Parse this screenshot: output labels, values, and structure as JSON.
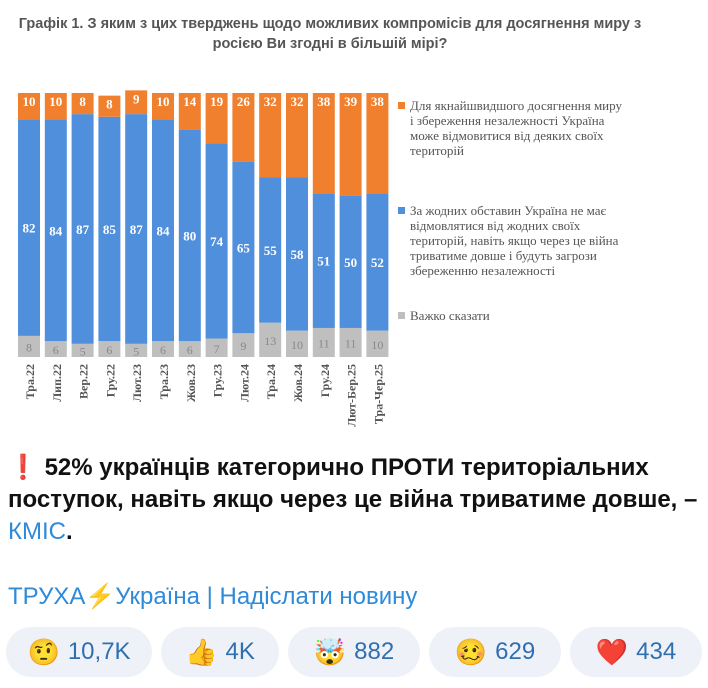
{
  "chart_data": {
    "type": "bar",
    "stacked": true,
    "title": "Графік 1. З яким з цих тверджень щодо можливих компромісів для досягнення миру з росією Ви згодні в більшій мірі?",
    "categories": [
      "Тра.22",
      "Лип.22",
      "Вер.22",
      "Гру.22",
      "Лют.23",
      "Тра.23",
      "Жов.23",
      "Гру.23",
      "Лют.24",
      "Тра.24",
      "Жов.24",
      "Гру.24",
      "Лют-Бер.25",
      "Тра-Чер.25"
    ],
    "series": [
      {
        "name": "Важко сказати",
        "color": "#bfbfbf",
        "values": [
          8,
          6,
          5,
          6,
          5,
          6,
          6,
          7,
          9,
          13,
          10,
          11,
          11,
          10
        ]
      },
      {
        "name": "За жодних обставин Україна не має відмовлятися від жодних своїх територій, навіть якщо через це війна триватиме довше і будуть загрози збереженню незалежності",
        "color": "#4f8fdc",
        "values": [
          82,
          84,
          87,
          85,
          87,
          84,
          80,
          74,
          65,
          55,
          58,
          51,
          50,
          52
        ]
      },
      {
        "name": "Для якнайшвидшого досягнення миру і збереження незалежності Україна може відмовитися від деяких своїх територій",
        "color": "#f07f2e",
        "values": [
          10,
          10,
          8,
          8,
          9,
          10,
          14,
          19,
          26,
          32,
          32,
          38,
          39,
          38
        ]
      }
    ],
    "ylim": [
      0,
      100
    ],
    "legend": "right"
  },
  "message": {
    "icon": "❗",
    "text": "52% українців категорично ПРОТИ територіальних поступок, навіть якщо через це війна триватиме довше, – ",
    "link": "КМІС",
    "end": "."
  },
  "links": {
    "channel": "ТРУХА",
    "bolt": "⚡",
    "ukraine": "Україна",
    "sep": " | ",
    "submit": "Надіслати новину"
  },
  "reactions": [
    {
      "emoji": "🤨",
      "count": "10,7K"
    },
    {
      "emoji": "👍",
      "count": "4K"
    },
    {
      "emoji": "🤯",
      "count": "882"
    },
    {
      "emoji": "🥴",
      "count": "629"
    },
    {
      "emoji": "❤️",
      "count": "434"
    }
  ]
}
